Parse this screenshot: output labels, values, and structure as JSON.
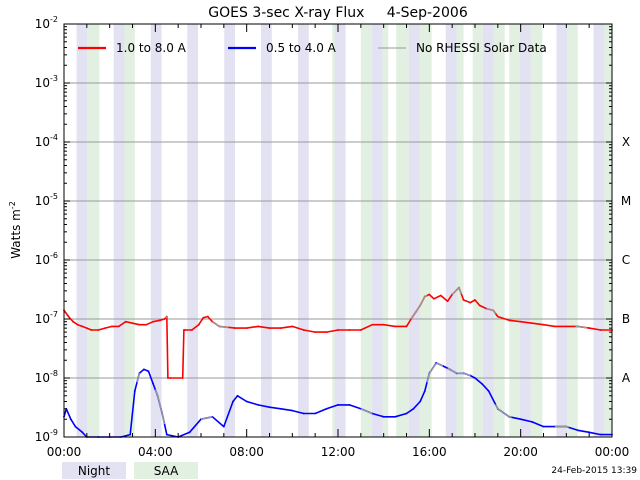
{
  "chart_data": {
    "type": "line",
    "title": "GOES 3-sec X-ray Flux     4-Sep-2006",
    "ylabel": "Watts m",
    "ylabel_superscript": "-2",
    "y_scale": "log",
    "ylim": [
      1e-09,
      0.01
    ],
    "y_ticks": [
      {
        "value": 1e-09,
        "base": "10",
        "exp": "-9"
      },
      {
        "value": 1e-08,
        "base": "10",
        "exp": "-8"
      },
      {
        "value": 1e-07,
        "base": "10",
        "exp": "-7"
      },
      {
        "value": 1e-06,
        "base": "10",
        "exp": "-6"
      },
      {
        "value": 1e-05,
        "base": "10",
        "exp": "-5"
      },
      {
        "value": 0.0001,
        "base": "10",
        "exp": "-4"
      },
      {
        "value": 0.001,
        "base": "10",
        "exp": "-3"
      },
      {
        "value": 0.01,
        "base": "10",
        "exp": "-2"
      }
    ],
    "flare_classes": [
      {
        "label": "A",
        "value": 1e-08
      },
      {
        "label": "B",
        "value": 1e-07
      },
      {
        "label": "C",
        "value": 1e-06
      },
      {
        "label": "M",
        "value": 1e-05
      },
      {
        "label": "X",
        "value": 0.0001
      }
    ],
    "xlim_hours": [
      0,
      24
    ],
    "x_ticks": [
      {
        "hour": 0,
        "label": "00:00"
      },
      {
        "hour": 4,
        "label": "04:00"
      },
      {
        "hour": 8,
        "label": "08:00"
      },
      {
        "hour": 12,
        "label": "12:00"
      },
      {
        "hour": 16,
        "label": "16:00"
      },
      {
        "hour": 20,
        "label": "20:00"
      },
      {
        "hour": 24,
        "label": "00:00"
      }
    ],
    "grid": "horizontal",
    "legend": {
      "placement": "top",
      "entries": [
        {
          "label": "1.0 to 8.0 A",
          "color": "#ff0000"
        },
        {
          "label": "0.5 to 4.0 A",
          "color": "#0000ff"
        },
        {
          "label": "No RHESSI Solar Data",
          "color": "#999999"
        }
      ]
    },
    "shading_legend": [
      {
        "label": "Night",
        "color": "#e2e2f2"
      },
      {
        "label": "SAA",
        "color": "#e2f0e2"
      }
    ],
    "night_intervals_hours": [
      [
        0.55,
        1.02
      ],
      [
        2.18,
        2.65
      ],
      [
        3.8,
        4.27
      ],
      [
        5.4,
        5.87
      ],
      [
        7.02,
        7.49
      ],
      [
        8.63,
        9.1
      ],
      [
        10.25,
        10.72
      ],
      [
        11.86,
        12.33
      ],
      [
        13.48,
        13.95
      ],
      [
        15.1,
        15.57
      ],
      [
        16.72,
        17.19
      ],
      [
        18.34,
        18.81
      ],
      [
        19.96,
        20.43
      ],
      [
        21.57,
        22.04
      ],
      [
        23.19,
        23.66
      ]
    ],
    "saa_intervals_hours": [
      [
        1.02,
        1.55
      ],
      [
        2.65,
        3.1
      ],
      [
        11.75,
        12.05
      ],
      [
        13.0,
        13.48
      ],
      [
        13.95,
        14.2
      ],
      [
        14.55,
        15.1
      ],
      [
        15.57,
        16.1
      ],
      [
        17.19,
        17.5
      ],
      [
        17.9,
        18.34
      ],
      [
        18.81,
        19.3
      ],
      [
        19.5,
        19.96
      ],
      [
        20.43,
        20.95
      ],
      [
        22.04,
        22.5
      ],
      [
        23.66,
        24.0
      ]
    ],
    "series": [
      {
        "name": "1.0 to 8.0 A",
        "color": "#ff0000",
        "x_hours": [
          0.0,
          0.2,
          0.4,
          0.6,
          0.8,
          1.0,
          1.2,
          1.5,
          1.8,
          2.1,
          2.4,
          2.7,
          3.0,
          3.3,
          3.6,
          3.9,
          4.2,
          4.4,
          4.5,
          4.55,
          4.65,
          5.2,
          5.25,
          5.3,
          5.6,
          5.9,
          6.1,
          6.3,
          6.5,
          6.8,
          7.5,
          8.0,
          8.5,
          9.0,
          9.5,
          10.0,
          10.5,
          11.0,
          11.5,
          12.0,
          12.5,
          13.0,
          13.5,
          14.0,
          14.5,
          15.0,
          15.2,
          15.4,
          15.6,
          15.8,
          16.0,
          16.2,
          16.5,
          16.8,
          17.0,
          17.3,
          17.5,
          17.8,
          18.0,
          18.2,
          18.5,
          18.8,
          19.0,
          19.5,
          20.0,
          20.5,
          21.0,
          21.5,
          22.0,
          22.5,
          23.0,
          23.5,
          24.0
        ],
        "y": [
          1.4e-07,
          1.1e-07,
          9e-08,
          8e-08,
          7.5e-08,
          7e-08,
          6.5e-08,
          6.5e-08,
          7e-08,
          7.5e-08,
          7.5e-08,
          9e-08,
          8.5e-08,
          8e-08,
          8e-08,
          9e-08,
          9.5e-08,
          1e-07,
          1.1e-07,
          1e-08,
          1e-08,
          1e-08,
          6.5e-08,
          6.5e-08,
          6.5e-08,
          8e-08,
          1.05e-07,
          1.1e-07,
          9e-08,
          7.5e-08,
          7e-08,
          7e-08,
          7.5e-08,
          7e-08,
          7e-08,
          7.5e-08,
          6.5e-08,
          6e-08,
          6e-08,
          6.5e-08,
          6.5e-08,
          6.5e-08,
          8e-08,
          8e-08,
          7.5e-08,
          7.5e-08,
          1e-07,
          1.3e-07,
          1.7e-07,
          2.4e-07,
          2.6e-07,
          2.2e-07,
          2.5e-07,
          2e-07,
          2.6e-07,
          3.4e-07,
          2.1e-07,
          1.9e-07,
          2.1e-07,
          1.7e-07,
          1.5e-07,
          1.4e-07,
          1.1e-07,
          9.5e-08,
          9e-08,
          8.5e-08,
          8e-08,
          7.5e-08,
          7.5e-08,
          7.5e-08,
          7e-08,
          6.5e-08,
          6.5e-08
        ]
      },
      {
        "name": "0.5 to 4.0 A",
        "color": "#0000ff",
        "x_hours": [
          0.0,
          0.1,
          0.3,
          0.5,
          0.8,
          1.0,
          1.5,
          2.0,
          2.5,
          2.9,
          3.1,
          3.3,
          3.5,
          3.7,
          3.9,
          4.1,
          4.3,
          4.5,
          5.0,
          5.5,
          6.0,
          6.5,
          7.0,
          7.4,
          7.6,
          8.0,
          8.5,
          9.0,
          9.5,
          10.0,
          10.5,
          11.0,
          11.5,
          12.0,
          12.5,
          13.0,
          13.5,
          14.0,
          14.5,
          15.0,
          15.3,
          15.6,
          15.8,
          16.0,
          16.3,
          16.6,
          16.9,
          17.2,
          17.5,
          17.8,
          18.0,
          18.3,
          18.6,
          19.0,
          19.5,
          20.0,
          20.5,
          21.0,
          21.5,
          22.0,
          22.5,
          23.0,
          23.5,
          24.0
        ],
        "y": [
          2.2e-09,
          3e-09,
          2e-09,
          1.5e-09,
          1.2e-09,
          1e-09,
          1e-09,
          1e-09,
          1e-09,
          1.1e-09,
          6e-09,
          1.2e-08,
          1.4e-08,
          1.3e-08,
          8e-09,
          5e-09,
          2.5e-09,
          1.1e-09,
          1e-09,
          1.2e-09,
          2e-09,
          2.2e-09,
          1.5e-09,
          4e-09,
          5e-09,
          4e-09,
          3.5e-09,
          3.2e-09,
          3e-09,
          2.8e-09,
          2.5e-09,
          2.5e-09,
          3e-09,
          3.5e-09,
          3.5e-09,
          3e-09,
          2.5e-09,
          2.2e-09,
          2.2e-09,
          2.5e-09,
          3e-09,
          4e-09,
          6e-09,
          1.2e-08,
          1.8e-08,
          1.6e-08,
          1.4e-08,
          1.2e-08,
          1.2e-08,
          1.1e-08,
          1e-08,
          8e-09,
          6e-09,
          3e-09,
          2.2e-09,
          2e-09,
          1.8e-09,
          1.5e-09,
          1.5e-09,
          1.5e-09,
          1.3e-09,
          1.2e-09,
          1.1e-09,
          1.1e-09
        ]
      }
    ],
    "gray_segments": [
      {
        "series": 0,
        "x_hours": [
          4.45,
          4.5
        ]
      },
      {
        "series": 0,
        "x_hours": [
          6.5,
          7.2
        ]
      },
      {
        "series": 0,
        "x_hours": [
          15.2,
          15.9
        ]
      },
      {
        "series": 0,
        "x_hours": [
          17.0,
          17.4
        ]
      },
      {
        "series": 0,
        "x_hours": [
          18.5,
          18.9
        ]
      },
      {
        "series": 0,
        "x_hours": [
          22.4,
          22.9
        ]
      },
      {
        "series": 1,
        "x_hours": [
          3.2,
          3.3
        ]
      },
      {
        "series": 1,
        "x_hours": [
          4.0,
          4.4
        ]
      },
      {
        "series": 1,
        "x_hours": [
          6.0,
          6.5
        ]
      },
      {
        "series": 1,
        "x_hours": [
          13.0,
          13.5
        ]
      },
      {
        "series": 1,
        "x_hours": [
          15.9,
          16.6
        ]
      },
      {
        "series": 1,
        "x_hours": [
          16.8,
          17.8
        ]
      },
      {
        "series": 1,
        "x_hours": [
          18.9,
          19.6
        ]
      },
      {
        "series": 1,
        "x_hours": [
          21.5,
          22.1
        ]
      }
    ],
    "timestamp": "24-Feb-2015 13:39"
  }
}
